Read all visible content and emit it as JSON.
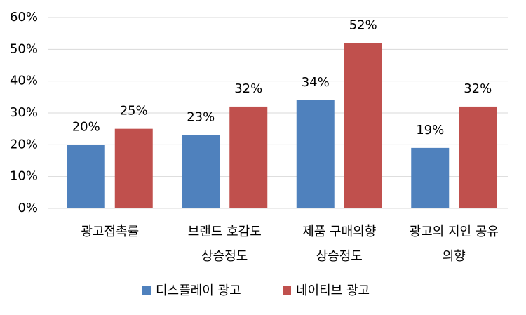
{
  "chart_data": {
    "type": "bar",
    "categories": [
      [
        "광고접촉률"
      ],
      [
        "브랜드 호감도",
        "상승정도"
      ],
      [
        "제품 구매의향",
        "상승정도"
      ],
      [
        "광고의 지인 공유",
        "의향"
      ]
    ],
    "series": [
      {
        "name": "디스플레이 광고",
        "color": "#4f81bd",
        "values": [
          20,
          23,
          34,
          19
        ],
        "value_labels": [
          "20%",
          "23%",
          "34%",
          "19%"
        ]
      },
      {
        "name": "네이티브 광고",
        "color": "#c0504d",
        "values": [
          25,
          32,
          52,
          32
        ],
        "value_labels": [
          "25%",
          "32%",
          "52%",
          "32%"
        ]
      }
    ],
    "ylim": [
      0,
      60
    ],
    "yticks": [
      {
        "value": 0,
        "label": "0%"
      },
      {
        "value": 10,
        "label": "10%"
      },
      {
        "value": 20,
        "label": "20%"
      },
      {
        "value": 30,
        "label": "30%"
      },
      {
        "value": 40,
        "label": "40%"
      },
      {
        "value": 50,
        "label": "50%"
      },
      {
        "value": 60,
        "label": "60%"
      }
    ],
    "grid": true,
    "legend": "bottom"
  }
}
